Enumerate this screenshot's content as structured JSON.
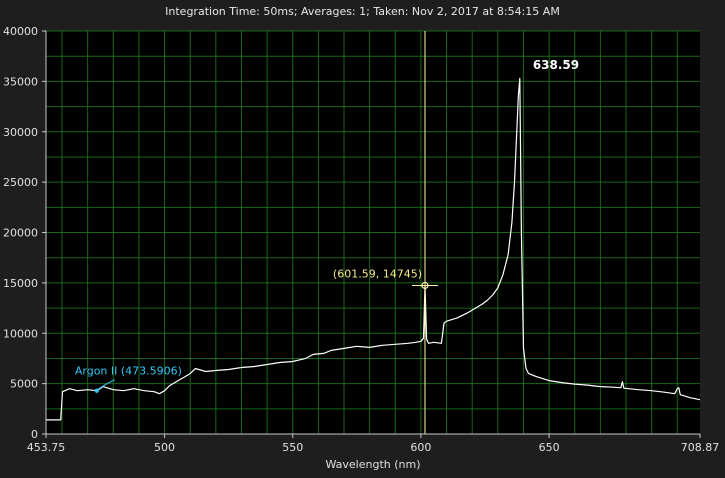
{
  "header": {
    "info": "Integration Time: 50ms;  Averages: 1;  Taken: Nov 2, 2017 at 8:54:15 AM"
  },
  "colors": {
    "background": "#1e1e1e",
    "plot_bg": "#000000",
    "grid": "#1c7a1c",
    "series": "#ffffff",
    "cursor": "#fff3a8",
    "cursor_label": "#f4e88a",
    "argon": "#35c6f2"
  },
  "chart_data": {
    "type": "line",
    "title": "",
    "xlabel": "Wavelength (nm)",
    "ylabel": "",
    "xlim": [
      453.75,
      708.87
    ],
    "ylim": [
      0,
      40000
    ],
    "x_ticks": [
      {
        "value": 453.75,
        "label": "453.75"
      },
      {
        "value": 500,
        "label": "500"
      },
      {
        "value": 550,
        "label": "550"
      },
      {
        "value": 600,
        "label": "600"
      },
      {
        "value": 650,
        "label": "650"
      },
      {
        "value": 708.87,
        "label": "708.87"
      }
    ],
    "y_ticks": [
      {
        "value": 0,
        "label": "0"
      },
      {
        "value": 5000,
        "label": "5000"
      },
      {
        "value": 10000,
        "label": "10000"
      },
      {
        "value": 15000,
        "label": "15000"
      },
      {
        "value": 20000,
        "label": "20000"
      },
      {
        "value": 25000,
        "label": "25000"
      },
      {
        "value": 30000,
        "label": "30000"
      },
      {
        "value": 35000,
        "label": "35000"
      },
      {
        "value": 40000,
        "label": "40000"
      }
    ],
    "grid": true,
    "grid_minor_x_step": 10,
    "grid_minor_y_step": 2500,
    "series": [
      {
        "x": [
          453.75,
          459.5,
          460.2,
          463,
          466,
          470,
          473.6,
          476,
          480,
          484,
          488,
          492,
          496,
          498,
          500,
          502,
          506,
          510,
          512,
          516,
          520,
          525,
          530,
          535,
          540,
          545,
          550,
          555,
          558,
          562,
          565,
          570,
          575,
          580,
          585,
          590,
          595,
          598,
          600,
          601.0,
          601.59,
          602.2,
          603,
          605,
          608,
          609,
          610,
          614,
          618,
          620,
          624,
          626,
          628,
          630,
          632,
          634,
          635.5,
          636.5,
          637.5,
          638.0,
          638.59,
          639.2,
          640,
          641,
          642,
          645,
          650,
          655,
          660,
          665,
          670,
          675,
          678,
          678.6,
          679.2,
          685,
          690,
          695,
          699,
          700,
          700.6,
          701.2,
          705,
          708.87
        ],
        "y": [
          1400,
          1400,
          4200,
          4500,
          4300,
          4400,
          4300,
          4700,
          4400,
          4300,
          4500,
          4300,
          4200,
          4000,
          4300,
          4800,
          5400,
          6000,
          6500,
          6200,
          6300,
          6400,
          6600,
          6700,
          6900,
          7100,
          7200,
          7500,
          7900,
          8000,
          8300,
          8500,
          8700,
          8600,
          8800,
          8900,
          9000,
          9100,
          9200,
          9500,
          14745,
          9400,
          9000,
          9100,
          9000,
          11000,
          11200,
          11500,
          12000,
          12300,
          12900,
          13300,
          13800,
          14500,
          15800,
          17800,
          21000,
          25000,
          30500,
          33500,
          35300,
          20000,
          8500,
          6500,
          6000,
          5700,
          5300,
          5100,
          4950,
          4850,
          4700,
          4650,
          4600,
          5200,
          4550,
          4400,
          4300,
          4150,
          4000,
          4500,
          4600,
          3900,
          3600,
          3400
        ]
      }
    ],
    "annotations": {
      "peak": {
        "x": 638.59,
        "label": "638.59"
      },
      "cursor": {
        "x": 601.59,
        "y": 14745,
        "label": "(601.59, 14745)"
      },
      "reference": {
        "x": 473.5906,
        "y": 4300,
        "label": "Argon II (473.5906)"
      }
    }
  }
}
